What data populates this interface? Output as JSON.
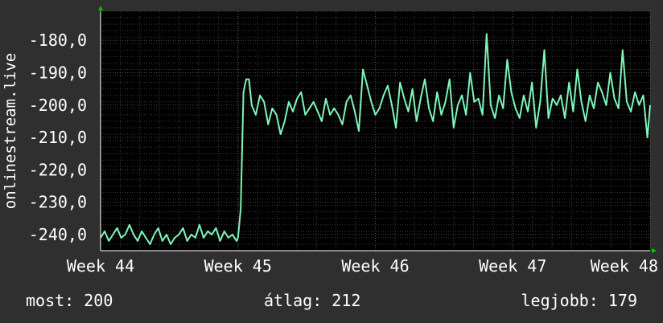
{
  "chart_data": {
    "type": "line",
    "title": "",
    "ylabel": "onlinestream.live",
    "xlabel": "",
    "x_ticks": [
      "Week 44",
      "Week 45",
      "Week 46",
      "Week 47",
      "Week 48"
    ],
    "y_ticks": [
      "-180,0",
      "-190,0",
      "-200,0",
      "-210,0",
      "-220,0",
      "-230,0",
      "-240,0"
    ],
    "y_tick_values": [
      -180,
      -190,
      -200,
      -210,
      -220,
      -230,
      -240
    ],
    "ylim": [
      -245,
      -171
    ],
    "xlim": [
      44,
      48
    ],
    "grid": true,
    "series": [
      {
        "color": "#7ff5b8",
        "x": [
          44.0,
          44.03,
          44.06,
          44.09,
          44.12,
          44.15,
          44.18,
          44.21,
          44.24,
          44.27,
          44.3,
          44.33,
          44.36,
          44.39,
          44.42,
          44.45,
          44.48,
          44.51,
          44.54,
          44.57,
          44.6,
          44.63,
          44.66,
          44.69,
          44.72,
          44.75,
          44.78,
          44.81,
          44.84,
          44.87,
          44.9,
          44.93,
          44.96,
          44.99,
          45.0,
          45.02,
          45.04,
          45.06,
          45.08,
          45.1,
          45.13,
          45.16,
          45.19,
          45.22,
          45.25,
          45.28,
          45.31,
          45.34,
          45.37,
          45.4,
          45.43,
          45.46,
          45.49,
          45.52,
          45.55,
          45.58,
          45.61,
          45.64,
          45.67,
          45.7,
          45.73,
          45.76,
          45.79,
          45.82,
          45.85,
          45.88,
          45.91,
          45.94,
          45.97,
          46.0,
          46.03,
          46.06,
          46.09,
          46.12,
          46.15,
          46.18,
          46.21,
          46.24,
          46.27,
          46.3,
          46.33,
          46.36,
          46.39,
          46.42,
          46.45,
          46.48,
          46.51,
          46.54,
          46.57,
          46.6,
          46.63,
          46.66,
          46.69,
          46.72,
          46.75,
          46.78,
          46.81,
          46.84,
          46.87,
          46.9,
          46.93,
          46.96,
          46.99,
          47.02,
          47.05,
          47.08,
          47.11,
          47.14,
          47.17,
          47.2,
          47.23,
          47.26,
          47.29,
          47.32,
          47.35,
          47.38,
          47.41,
          47.44,
          47.47,
          47.5,
          47.53,
          47.56,
          47.59,
          47.62,
          47.65,
          47.68,
          47.71,
          47.74,
          47.77,
          47.8,
          47.83,
          47.86,
          47.89,
          47.92,
          47.95,
          47.98,
          48.0
        ],
        "y": [
          -241,
          -239,
          -242,
          -240,
          -238,
          -241,
          -240,
          -237,
          -240,
          -242,
          -239,
          -241,
          -243,
          -240,
          -238,
          -242,
          -240,
          -243,
          -241,
          -240,
          -238,
          -242,
          -240,
          -241,
          -237,
          -241,
          -239,
          -240,
          -238,
          -242,
          -239,
          -241,
          -240,
          -242,
          -241,
          -232,
          -196,
          -192,
          -192,
          -200,
          -203,
          -197,
          -199,
          -206,
          -201,
          -203,
          -209,
          -205,
          -199,
          -202,
          -198,
          -196,
          -203,
          -201,
          -199,
          -202,
          -205,
          -198,
          -203,
          -201,
          -203,
          -206,
          -199,
          -197,
          -202,
          -208,
          -189,
          -194,
          -199,
          -203,
          -201,
          -197,
          -194,
          -200,
          -207,
          -193,
          -198,
          -202,
          -195,
          -205,
          -198,
          -192,
          -201,
          -205,
          -196,
          -203,
          -199,
          -192,
          -207,
          -200,
          -197,
          -203,
          -190,
          -199,
          -198,
          -203,
          -178,
          -200,
          -204,
          -197,
          -201,
          -186,
          -196,
          -201,
          -204,
          -197,
          -202,
          -193,
          -207,
          -199,
          -183,
          -204,
          -198,
          -200,
          -197,
          -204,
          -193,
          -202,
          -189,
          -199,
          -205,
          -197,
          -201,
          -193,
          -196,
          -200,
          -190,
          -198,
          -201,
          -183,
          -199,
          -202,
          -196,
          -200,
          -197,
          -210,
          -200
        ]
      }
    ]
  },
  "footer": {
    "now": "most: 200",
    "avg": "átlag: 212",
    "best": "legjobb: 179"
  },
  "colors": {
    "background": "#2f2f2f",
    "plot_background": "#000000",
    "grid_major": "#555555",
    "grid_minor": "#3a3a3a",
    "line": "#7ff5b8",
    "axis_arrow": "#00cc00"
  }
}
